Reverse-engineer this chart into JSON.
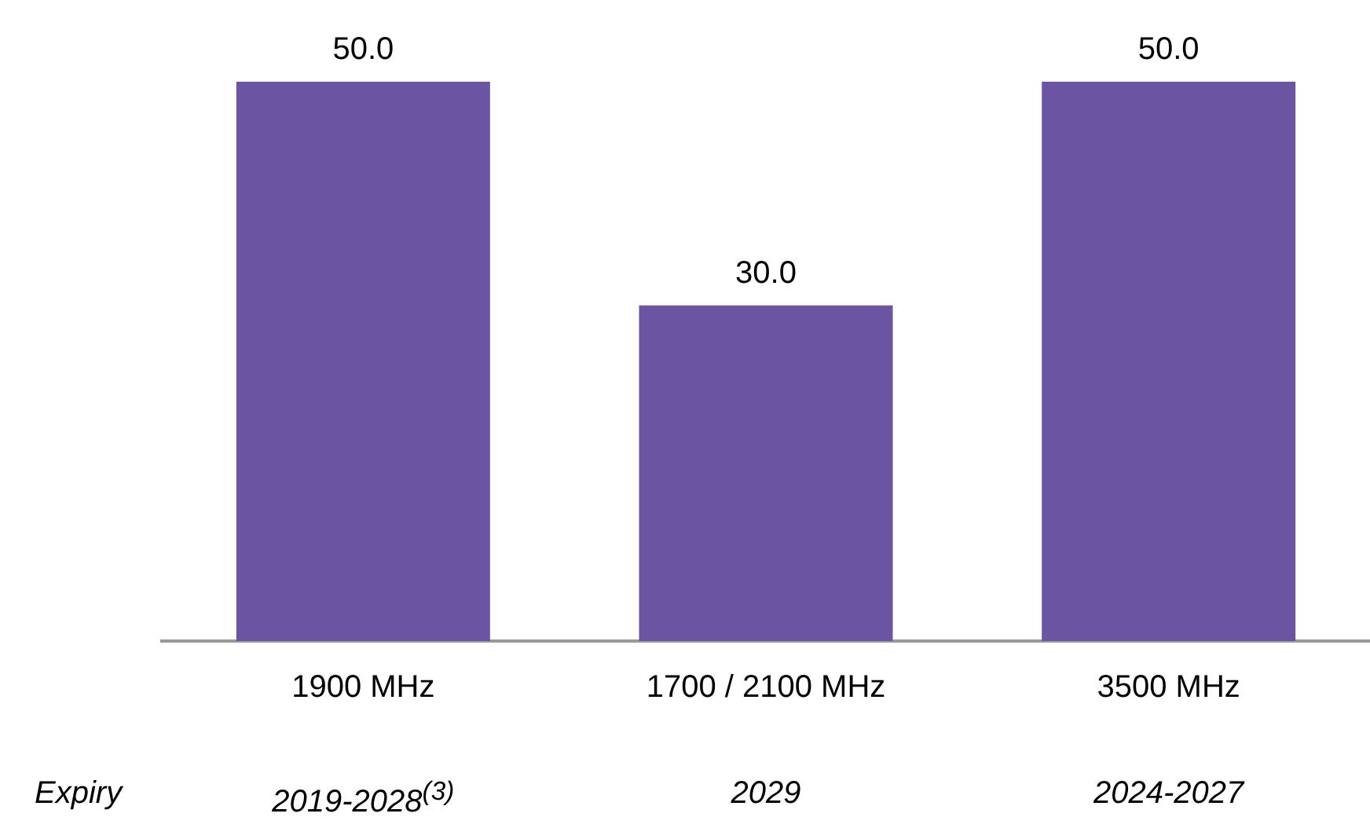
{
  "chart_data": {
    "type": "bar",
    "categories": [
      "1900 MHz",
      "1700 / 2100 MHz",
      "3500 MHz"
    ],
    "values": [
      50,
      30,
      50
    ],
    "value_labels": [
      "50.0",
      "30.0",
      "50.0"
    ],
    "color": "#6b55a3",
    "grid": false,
    "legend": false,
    "tick_labels": "x",
    "annotations": [
      "Expiry",
      "2019-2028$^{(3)}$",
      "2029",
      "2024-2027"
    ]
  }
}
